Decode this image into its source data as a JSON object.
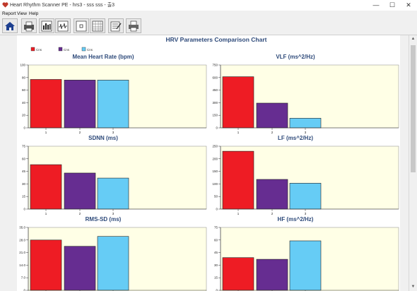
{
  "window": {
    "title": "Heart Rhythm Scanner PE - hrs3 - sss sss - 출3",
    "minimize_glyph": "—",
    "maximize_glyph": "☐",
    "close_glyph": "✕"
  },
  "menu": [
    "Report",
    "View",
    "Help"
  ],
  "toolbar": {
    "buttons": [
      "home-icon",
      "print-report-icon",
      "bar-chart-icon",
      "waveform-icon",
      "frame-icon",
      "grid-table-icon",
      "notes-icon",
      "printer-icon"
    ]
  },
  "report": {
    "title": "HRV Parameters Comparison Chart",
    "legend": [
      "Cns",
      "Cns",
      "Cns"
    ],
    "colors": [
      "#ee1c24",
      "#662d91",
      "#66ccf5"
    ],
    "plot_bg": "#ffffe6"
  },
  "chart_data": [
    {
      "type": "bar",
      "title": "Mean Heart Rate (bpm)",
      "categories": [
        "1",
        "2",
        "3"
      ],
      "values": [
        77,
        76,
        76
      ],
      "ylim": [
        0,
        100
      ],
      "yticks": [
        "0",
        "20",
        "40",
        "60",
        "80",
        "100"
      ]
    },
    {
      "type": "bar",
      "title": "VLF (ms^2/Hz)",
      "categories": [
        "1",
        "2",
        "3"
      ],
      "values": [
        610,
        295,
        115
      ],
      "ylim": [
        0,
        750
      ],
      "yticks": [
        "0",
        "150",
        "300",
        "450",
        "600",
        "750"
      ]
    },
    {
      "type": "bar",
      "title": "SDNN (ms)",
      "categories": [
        "1",
        "2",
        "3"
      ],
      "values": [
        53,
        43,
        37
      ],
      "ylim": [
        0,
        75
      ],
      "yticks": [
        "0",
        "15",
        "30",
        "45",
        "60",
        "75"
      ]
    },
    {
      "type": "bar",
      "title": "LF (ms^2/Hz)",
      "categories": [
        "1",
        "2",
        "3"
      ],
      "values": [
        230,
        118,
        103
      ],
      "ylim": [
        0,
        250
      ],
      "yticks": [
        "0",
        "50",
        "100",
        "150",
        "200",
        "250"
      ]
    },
    {
      "type": "bar",
      "title": "RMS-SD (ms)",
      "categories": [
        "1",
        "2",
        "3"
      ],
      "values": [
        28,
        24.5,
        30
      ],
      "ylim": [
        0,
        35
      ],
      "yticks": [
        "0",
        "7.0",
        "14.0",
        "21.0",
        "28.0",
        "35.0"
      ]
    },
    {
      "type": "bar",
      "title": "HF (ms^2/Hz)",
      "categories": [
        "1",
        "2",
        "3"
      ],
      "values": [
        39,
        37,
        59
      ],
      "ylim": [
        0,
        75
      ],
      "yticks": [
        "0",
        "15",
        "30",
        "45",
        "60",
        "75"
      ]
    }
  ]
}
